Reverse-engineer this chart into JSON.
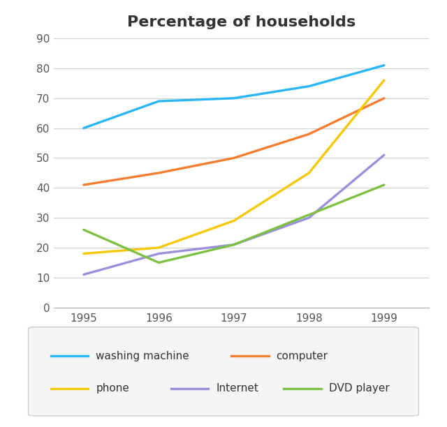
{
  "title": "Percentage of households",
  "years": [
    1995,
    1996,
    1997,
    1998,
    1999
  ],
  "series": {
    "washing machine": {
      "values": [
        60,
        69,
        70,
        74,
        81
      ],
      "color": "#29b6f6"
    },
    "computer": {
      "values": [
        41,
        45,
        50,
        58,
        70
      ],
      "color": "#f47d30"
    },
    "phone": {
      "values": [
        18,
        20,
        29,
        45,
        76
      ],
      "color": "#f5c800"
    },
    "Internet": {
      "values": [
        11,
        18,
        21,
        30,
        51
      ],
      "color": "#9b8fdc"
    },
    "DVD player": {
      "values": [
        26,
        15,
        21,
        31,
        41
      ],
      "color": "#7dc142"
    }
  },
  "ylim": [
    0,
    90
  ],
  "yticks": [
    0,
    10,
    20,
    30,
    40,
    50,
    60,
    70,
    80,
    90
  ],
  "background_color": "#ffffff",
  "grid_color": "#d0d0d0",
  "legend_row1": [
    "washing machine",
    "computer"
  ],
  "legend_row2": [
    "phone",
    "Internet",
    "DVD player"
  ],
  "title_fontsize": 16,
  "tick_fontsize": 11,
  "legend_fontsize": 11,
  "linewidth": 2.4
}
